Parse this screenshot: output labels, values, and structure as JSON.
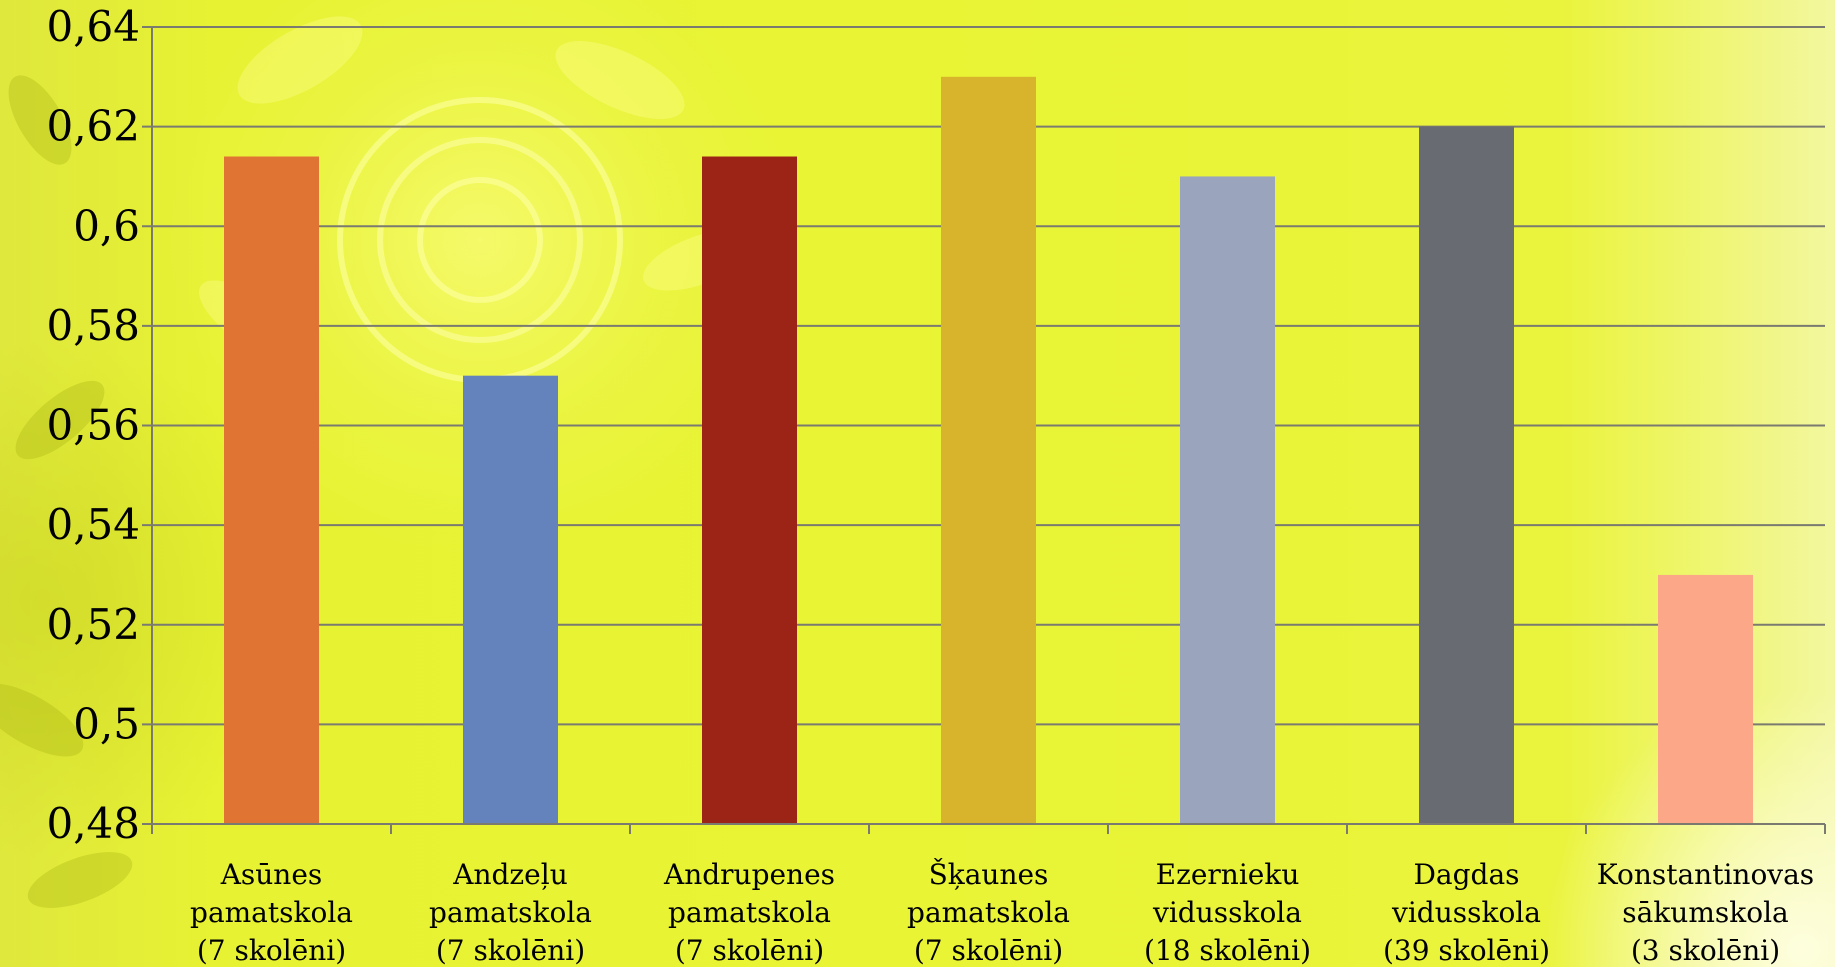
{
  "chart_data": {
    "type": "bar",
    "categories": [
      [
        "Asūnes",
        "pamatskola",
        "(7 skolēni)"
      ],
      [
        "Andzeļu",
        "pamatskola",
        "(7 skolēni)"
      ],
      [
        "Andrupenes",
        "pamatskola",
        "(7 skolēni)"
      ],
      [
        "Šķaunes",
        "pamatskola",
        "(7 skolēni)"
      ],
      [
        "Ezernieku",
        "vidusskola",
        "(18 skolēni)"
      ],
      [
        "Dagdas",
        "vidusskola",
        "(39 skolēni)"
      ],
      [
        "Konstantinovas",
        "sākumskola",
        "(3 skolēni)"
      ]
    ],
    "values": [
      0.614,
      0.57,
      0.614,
      0.63,
      0.61,
      0.62,
      0.53
    ],
    "colors": [
      "#E07432",
      "#6482BC",
      "#9C2416",
      "#D8B42C",
      "#9AA4BC",
      "#686C72",
      "#FCA888"
    ],
    "ylim": [
      0.48,
      0.64
    ],
    "yticks": [
      "0,48",
      "0,5",
      "0,52",
      "0,54",
      "0,56",
      "0,58",
      "0,6",
      "0,62",
      "0,64"
    ],
    "yticks_values": [
      0.48,
      0.5,
      0.52,
      0.54,
      0.56,
      0.58,
      0.6,
      0.62,
      0.64
    ],
    "grid": true,
    "title": "",
    "xlabel": "",
    "ylabel": ""
  }
}
